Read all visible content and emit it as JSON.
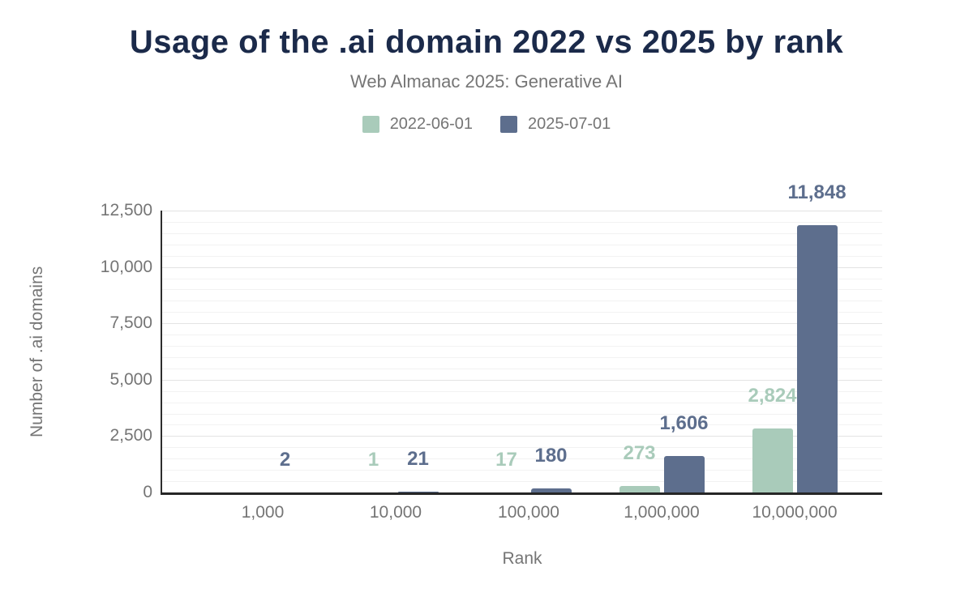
{
  "title": "Usage of the .ai domain 2022 vs 2025 by rank",
  "subtitle": "Web Almanac 2025: Generative AI",
  "colors": {
    "title_text": "#1b2a4a",
    "muted_text": "#757575",
    "axis_line": "#2d2d2d",
    "major_gridline": "#e3e3e3",
    "minor_gridline": "#f2f2f2",
    "series_2022": "#a9cbba",
    "series_2025": "#5d6e8d",
    "background": "#ffffff"
  },
  "chart_data": {
    "type": "bar",
    "title": "Usage of the .ai domain 2022 vs 2025 by rank",
    "subtitle": "Web Almanac 2025: Generative AI",
    "xlabel": "Rank",
    "ylabel": "Number of .ai domains",
    "categories": [
      "1,000",
      "10,000",
      "100,000",
      "1,000,000",
      "10,000,000"
    ],
    "series": [
      {
        "name": "2022-06-01",
        "color": "#a9cbba",
        "values": [
          0,
          1,
          17,
          273,
          2824
        ],
        "data_labels": [
          "",
          "1",
          "17",
          "273",
          "2,824"
        ]
      },
      {
        "name": "2025-07-01",
        "color": "#5d6e8d",
        "values": [
          2,
          21,
          180,
          1606,
          11848
        ],
        "data_labels": [
          "2",
          "21",
          "180",
          "1,606",
          "11,848"
        ]
      }
    ],
    "ylim": [
      0,
      12500
    ],
    "yticks": [
      0,
      2500,
      5000,
      7500,
      10000,
      12500
    ],
    "ytick_labels": [
      "0",
      "2,500",
      "5,000",
      "7,500",
      "10,000",
      "12,500"
    ],
    "minor_grid_step": 500,
    "grid": "horizontal, major and minor lines",
    "legend_position": "top-center"
  }
}
